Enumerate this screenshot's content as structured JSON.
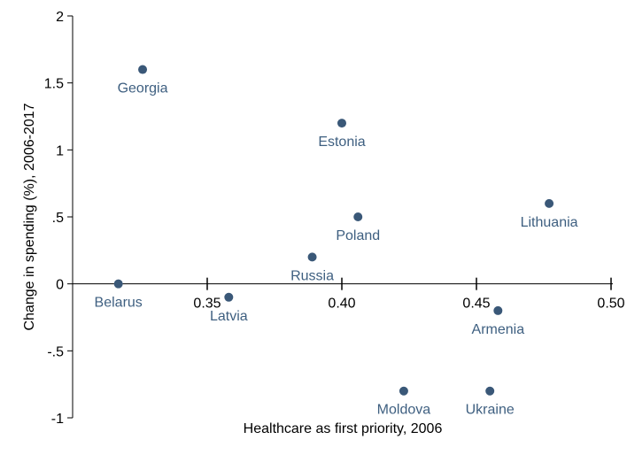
{
  "chart_data": {
    "type": "scatter",
    "title": "",
    "xlabel": "Healthcare as first priority, 2006",
    "ylabel": "Change in spending (%), 2006-2017",
    "xlim": [
      0.3,
      0.5
    ],
    "ylim": [
      -1,
      2
    ],
    "xticks": [
      {
        "v": 0.35,
        "label": "0.35"
      },
      {
        "v": 0.4,
        "label": "0.40"
      },
      {
        "v": 0.45,
        "label": "0.45"
      },
      {
        "v": 0.5,
        "label": "0.50"
      }
    ],
    "yticks": [
      {
        "v": 2,
        "label": "2"
      },
      {
        "v": 1.5,
        "label": "1.5"
      },
      {
        "v": 1,
        "label": "1"
      },
      {
        "v": 0.5,
        "label": ".5"
      },
      {
        "v": 0,
        "label": "0"
      },
      {
        "v": -0.5,
        "label": "-.5"
      },
      {
        "v": -1,
        "label": "-1"
      }
    ],
    "marker_color": "#3a5878",
    "label_color": "#3e5f80",
    "points": [
      {
        "name": "Georgia",
        "x": 0.326,
        "y": 1.6
      },
      {
        "name": "Estonia",
        "x": 0.4,
        "y": 1.2
      },
      {
        "name": "Poland",
        "x": 0.406,
        "y": 0.5
      },
      {
        "name": "Lithuania",
        "x": 0.477,
        "y": 0.6
      },
      {
        "name": "Russia",
        "x": 0.389,
        "y": 0.2
      },
      {
        "name": "Belarus",
        "x": 0.317,
        "y": 0.0
      },
      {
        "name": "Latvia",
        "x": 0.358,
        "y": -0.1
      },
      {
        "name": "Armenia",
        "x": 0.458,
        "y": -0.2
      },
      {
        "name": "Moldova",
        "x": 0.423,
        "y": -0.8
      },
      {
        "name": "Ukraine",
        "x": 0.455,
        "y": -0.8
      }
    ]
  }
}
